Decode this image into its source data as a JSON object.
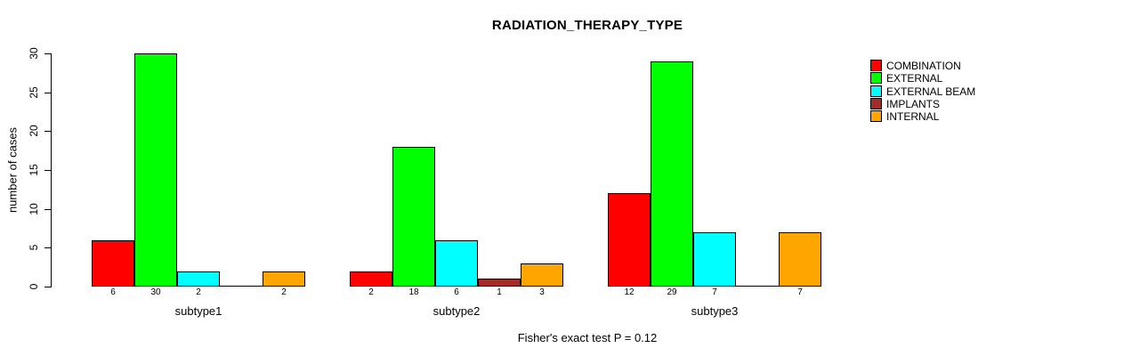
{
  "chart_data": {
    "type": "bar",
    "title": "RADIATION_THERAPY_TYPE",
    "xlabel": "",
    "ylabel": "number of cases",
    "annotation": "Fisher's exact test P = 0.12",
    "categories": [
      "subtype1",
      "subtype2",
      "subtype3"
    ],
    "series": [
      {
        "name": "COMBINATION",
        "color": "#ff0000",
        "values": [
          6,
          2,
          12
        ]
      },
      {
        "name": "EXTERNAL",
        "color": "#00ff00",
        "values": [
          30,
          18,
          29
        ]
      },
      {
        "name": "EXTERNAL BEAM",
        "color": "#00ffff",
        "values": [
          2,
          6,
          7
        ]
      },
      {
        "name": "IMPLANTS",
        "color": "#a52a2a",
        "values": [
          0,
          1,
          0
        ]
      },
      {
        "name": "INTERNAL",
        "color": "#ffa500",
        "values": [
          2,
          3,
          7
        ]
      }
    ],
    "yticks": [
      0,
      5,
      10,
      15,
      20,
      25,
      30
    ],
    "ylim": [
      0,
      30
    ],
    "grid": false,
    "legend_position": "right",
    "bar_value_labels": true,
    "zero_value_labels_hidden": true,
    "bar_border_color": "#000000",
    "background_color": "#ffffff"
  }
}
